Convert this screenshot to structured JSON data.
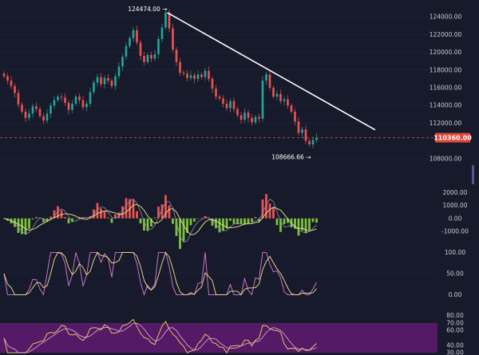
{
  "chart_data": {
    "type": "candlestick",
    "colors": {
      "up": "#26a69a",
      "down": "#ef5350",
      "macd_pos": "#ef5350",
      "macd_neg": "#7cc33a",
      "trendline": "#ffffff",
      "last_price": "#e0463a",
      "stoch_k": "#e07ad8",
      "stoch_d": "#f0e68c",
      "rsi_band": "#6a1b7a"
    },
    "price_axis": {
      "ticks": [
        "124000.00",
        "122000.00",
        "120000.00",
        "118000.00",
        "116000.00",
        "114000.00",
        "112000.00",
        "108000.00"
      ],
      "tick_values": [
        124000,
        122000,
        120000,
        118000,
        116000,
        114000,
        112000,
        108000
      ],
      "range": [
        107000,
        125000
      ]
    },
    "annotations": {
      "high": "124474.00 →",
      "high_value": 124474,
      "low": "108666.66 →",
      "low_value": 108666.66,
      "last_price": "110360.00",
      "last_price_value": 110360
    },
    "trendline": {
      "from": [
        124474
      ],
      "to": [
        111250
      ]
    },
    "macd": {
      "ticks": [
        "2000.00",
        "1000.00",
        "0.00",
        "-1000.00"
      ],
      "tick_values": [
        2000,
        1000,
        0,
        -1000
      ],
      "range": [
        -1500,
        2400
      ]
    },
    "stochastic": {
      "ticks": [
        "100.00",
        "50.00",
        "0.00"
      ],
      "tick_values": [
        100,
        50,
        0
      ],
      "range": [
        -5,
        112
      ]
    },
    "rsi": {
      "ticks": [
        "80.00",
        "70.00",
        "60.00",
        "40.00",
        "30.00"
      ],
      "tick_values": [
        80,
        70,
        60,
        40,
        30
      ],
      "band": [
        30,
        70
      ],
      "range": [
        27,
        86
      ]
    },
    "candles_close": [
      117300,
      116800,
      116200,
      115400,
      114100,
      113300,
      112600,
      113100,
      113900,
      113600,
      112800,
      112300,
      113100,
      114000,
      114600,
      115000,
      114900,
      114300,
      113500,
      114200,
      115000,
      114600,
      113800,
      114200,
      115500,
      116600,
      117200,
      116400,
      117100,
      116800,
      116200,
      117300,
      118400,
      119500,
      120700,
      121600,
      122500,
      121100,
      119600,
      118900,
      119700,
      119300,
      119800,
      121500,
      122800,
      124474,
      122700,
      120300,
      118900,
      117700,
      117600,
      117100,
      117400,
      117000,
      117500,
      117200,
      117900,
      117000,
      115900,
      115000,
      114800,
      114200,
      113700,
      114500,
      113600,
      112900,
      112400,
      113200,
      112600,
      112100,
      112700,
      112500,
      116800,
      117500,
      116000,
      115000,
      115300,
      114500,
      114700,
      114000,
      113300,
      112200,
      110900,
      111300,
      110000,
      109600,
      110100,
      110360
    ]
  }
}
